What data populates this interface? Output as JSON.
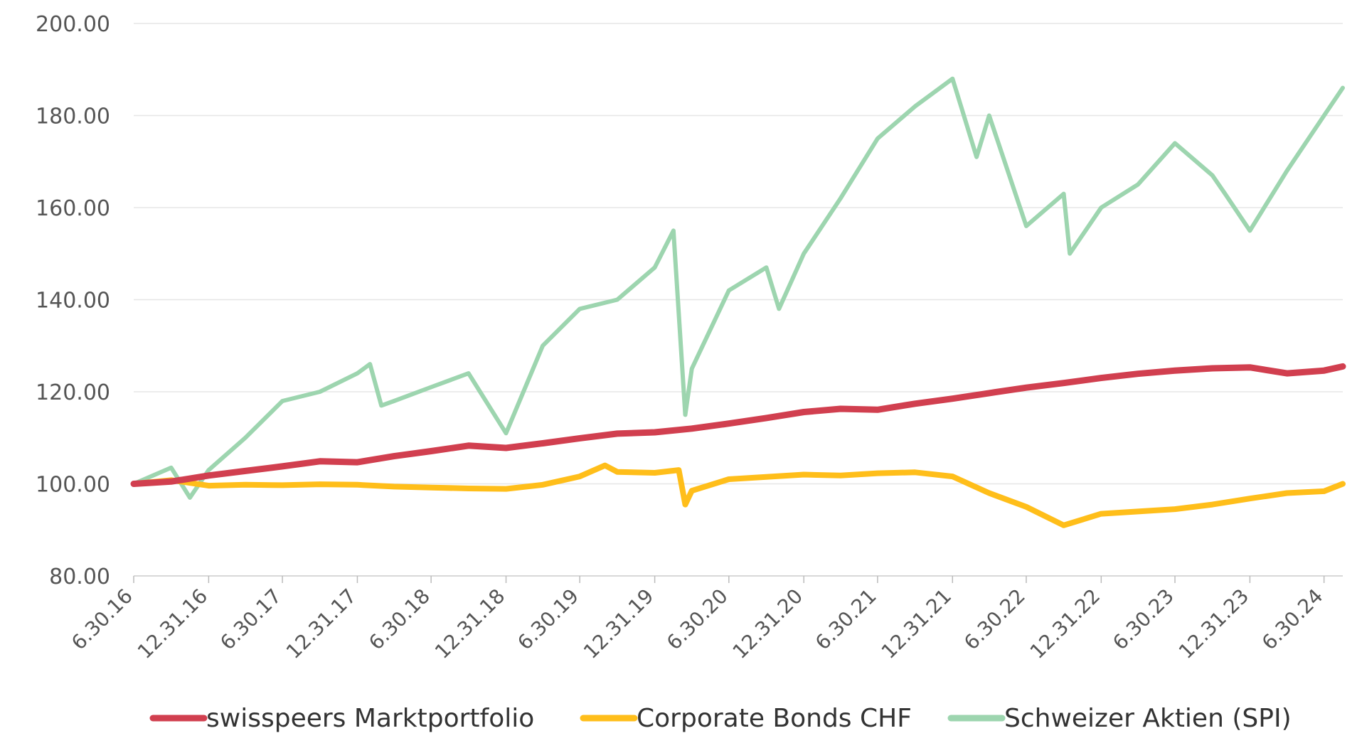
{
  "chart_data": {
    "type": "line",
    "title": "",
    "xlabel": "",
    "ylabel": "",
    "ylim": [
      80,
      200
    ],
    "y_ticks": [
      "80.00",
      "100.00",
      "120.00",
      "140.00",
      "160.00",
      "180.00",
      "200.00"
    ],
    "x_ticks": [
      "6.30.16",
      "12.31.16",
      "6.30.17",
      "12.31.17",
      "6.30.18",
      "12.31.18",
      "6.30.19",
      "12.31.19",
      "6.30.20",
      "12.31.20",
      "6.30.21",
      "12.31.21",
      "6.30.22",
      "12.31.22",
      "6.30.23",
      "12.31.23",
      "6.30.24"
    ],
    "grid": "horizontal",
    "legend": "bottom",
    "series": [
      {
        "name": "swisspeers Marktportfolio",
        "color": "#d13f4f",
        "x": [
          "6.30.16",
          "9.30.16",
          "12.31.16",
          "3.31.17",
          "6.30.17",
          "9.30.17",
          "12.31.17",
          "3.31.18",
          "6.30.18",
          "9.30.18",
          "12.31.18",
          "3.31.19",
          "6.30.19",
          "9.30.19",
          "12.31.19",
          "3.31.20",
          "6.30.20",
          "9.30.20",
          "12.31.20",
          "3.31.21",
          "6.30.21",
          "9.30.21",
          "12.31.21",
          "3.31.22",
          "6.30.22",
          "9.30.22",
          "12.31.22",
          "3.31.23",
          "6.30.23",
          "9.30.23",
          "12.31.23",
          "3.31.24",
          "6.30.24",
          "8.15.24"
        ],
        "values": [
          100.0,
          100.5,
          101.8,
          102.8,
          103.8,
          104.9,
          104.7,
          106.0,
          107.1,
          108.3,
          107.8,
          108.8,
          109.9,
          110.9,
          111.2,
          112.0,
          113.1,
          114.3,
          115.6,
          116.3,
          116.1,
          117.4,
          118.5,
          119.7,
          120.9,
          121.9,
          123.0,
          123.9,
          124.6,
          125.1,
          125.3,
          124.0,
          124.6,
          125.5
        ]
      },
      {
        "name": "Corporate Bonds CHF",
        "color": "#ffbe1a",
        "x": [
          "6.30.16",
          "9.30.16",
          "12.31.16",
          "3.31.17",
          "6.30.17",
          "9.30.17",
          "12.31.17",
          "3.31.18",
          "6.30.18",
          "9.30.18",
          "12.31.18",
          "3.31.19",
          "6.30.19",
          "8.31.19",
          "9.30.19",
          "12.31.19",
          "2.28.20",
          "3.15.20",
          "3.31.20",
          "6.30.20",
          "9.30.20",
          "12.31.20",
          "3.31.21",
          "6.30.21",
          "9.30.21",
          "12.31.21",
          "3.31.22",
          "6.30.22",
          "9.30.22",
          "12.31.22",
          "3.31.23",
          "6.30.23",
          "9.30.23",
          "12.31.23",
          "3.31.24",
          "6.30.24",
          "8.15.24"
        ],
        "values": [
          100.0,
          100.8,
          99.6,
          99.8,
          99.7,
          99.9,
          99.8,
          99.4,
          99.2,
          99.0,
          98.9,
          99.8,
          101.6,
          104.0,
          102.6,
          102.4,
          103.0,
          95.5,
          98.5,
          101.0,
          101.5,
          102.0,
          101.8,
          102.3,
          102.5,
          101.6,
          98.0,
          95.0,
          91.0,
          93.5,
          94.0,
          94.5,
          95.5,
          96.8,
          98.0,
          98.4,
          100.0
        ]
      },
      {
        "name": "Schweizer Aktien (SPI)",
        "color": "#9dd5af",
        "x": [
          "6.30.16",
          "9.30.16",
          "11.15.16",
          "12.31.16",
          "3.31.17",
          "6.30.17",
          "9.30.17",
          "12.31.17",
          "1.31.18",
          "2.28.18",
          "3.31.18",
          "6.30.18",
          "9.30.18",
          "12.31.18",
          "3.31.19",
          "6.30.19",
          "9.30.19",
          "12.31.19",
          "2.15.20",
          "3.15.20",
          "3.31.20",
          "6.30.20",
          "9.30.20",
          "10.31.20",
          "12.31.20",
          "3.31.21",
          "6.30.21",
          "9.30.21",
          "12.31.21",
          "2.28.22",
          "3.31.22",
          "6.30.22",
          "9.30.22",
          "10.15.22",
          "12.31.22",
          "3.31.23",
          "6.30.23",
          "9.30.23",
          "10.31.23",
          "12.31.23",
          "3.31.24",
          "6.30.24",
          "8.15.24"
        ],
        "values": [
          100.0,
          103.5,
          97.0,
          103.0,
          110.0,
          118.0,
          120.0,
          124.0,
          126.0,
          117.0,
          118.0,
          121.0,
          124.0,
          111.0,
          130.0,
          138.0,
          140.0,
          147.0,
          155.0,
          115.0,
          125.0,
          142.0,
          147.0,
          138.0,
          150.0,
          162.0,
          175.0,
          182.0,
          188.0,
          171.0,
          180.0,
          156.0,
          163.0,
          150.0,
          160.0,
          165.0,
          174.0,
          167.0,
          163.0,
          155.0,
          168.0,
          180.0,
          186.0
        ]
      }
    ]
  }
}
